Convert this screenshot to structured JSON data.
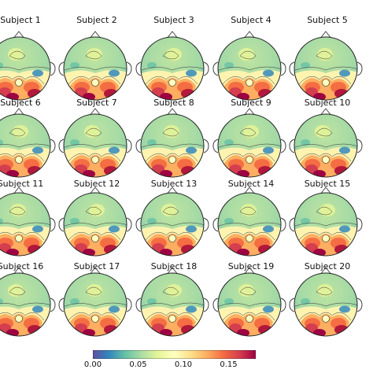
{
  "figure": {
    "subjects": [
      "Subject 1",
      "Subject 2",
      "Subject 3",
      "Subject 4",
      "Subject 5",
      "Subject 6",
      "Subject 7",
      "Subject 8",
      "Subject 9",
      "Subject 10",
      "Subject 11",
      "Subject 12",
      "Subject 13",
      "Subject 14",
      "Subject 15",
      "Subject 16",
      "Subject 17",
      "Subject 18",
      "Subject 19",
      "Subject 20"
    ],
    "colorbar": {
      "ticks": [
        "0.00",
        "0.05",
        "0.10",
        "0.15"
      ],
      "range": [
        0.0,
        0.18
      ],
      "colormap": "Spectral_r"
    },
    "colors": {
      "low": "#4a6fb0",
      "mid": "#f7f0b0",
      "high": "#9e0142"
    }
  }
}
